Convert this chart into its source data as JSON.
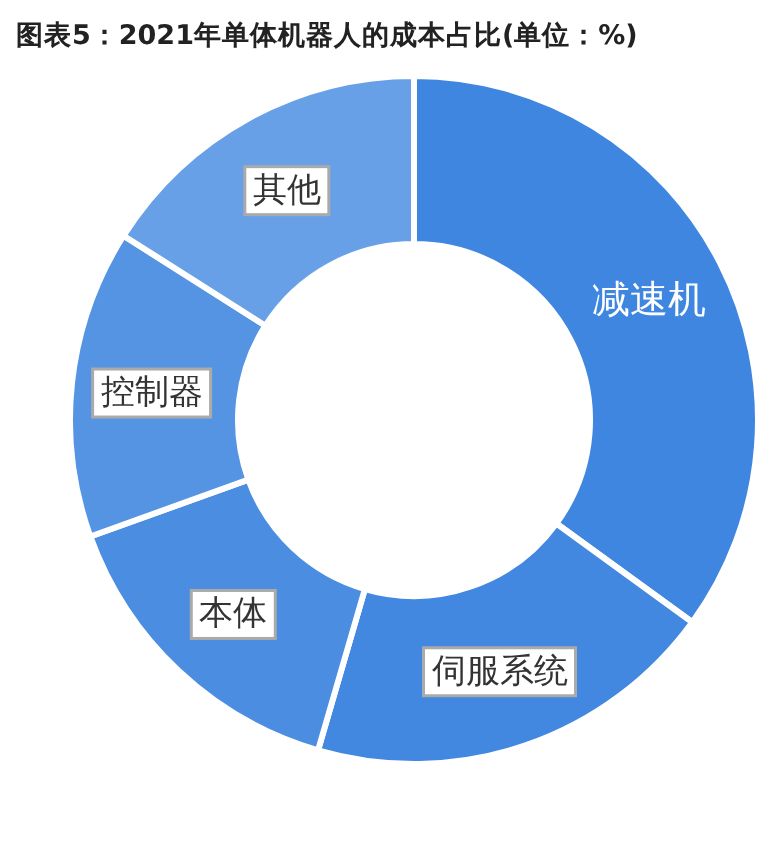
{
  "chart_data": {
    "type": "donut",
    "title": "图表5：2021年单体机器人的成本占比(单位：%)",
    "categories": [
      "减速机",
      "伺服系统",
      "本体",
      "控制器",
      "其他"
    ],
    "values": [
      35,
      19.5,
      15,
      14.5,
      16
    ],
    "colors": [
      "#3f86e0",
      "#4288e0",
      "#4b8de1",
      "#5594e3",
      "#68a0e7"
    ]
  }
}
